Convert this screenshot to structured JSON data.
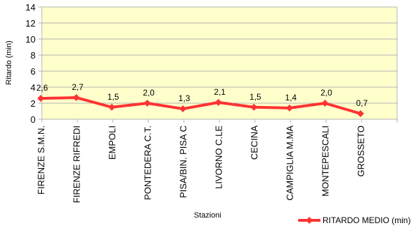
{
  "chart_data": {
    "type": "line",
    "categories": [
      "FIRENZE S.M.N.",
      "FIRENZE RIFREDI",
      "EMPOLI",
      "PONTEDERA C.T.",
      "PISA/BIN. PISA C",
      "LIVORNO C.LE",
      "CECINA",
      "CAMPIGLIA M.MA",
      "MONTEPESCALI",
      "GROSSETO"
    ],
    "series": [
      {
        "name": "RITARDO MEDIO (min)",
        "values": [
          2.6,
          2.7,
          1.5,
          2.0,
          1.3,
          2.1,
          1.5,
          1.4,
          2.0,
          0.7
        ],
        "labels": [
          "2,6",
          "2,7",
          "1,5",
          "2,0",
          "1,3",
          "2,1",
          "1,5",
          "1,4",
          "2,0",
          "0,7"
        ],
        "color": "#ff3333"
      }
    ],
    "xlabel": "Stazioni",
    "ylabel": "Ritardo (min)",
    "ylim": [
      0,
      14
    ],
    "yticks": [
      0,
      2,
      4,
      6,
      8,
      10,
      12,
      14
    ],
    "grid": true,
    "plot_background": "#ffffcc",
    "legend_position": "bottom-right"
  }
}
